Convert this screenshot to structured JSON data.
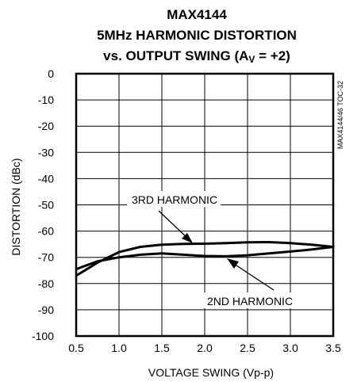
{
  "chart_data": {
    "type": "line",
    "title": [
      "MAX4144",
      "5MHz HARMONIC DISTORTION",
      "vs. OUTPUT SWING (AV = +2)"
    ],
    "side_note": "MAX4144/46 TOC-32",
    "xlabel": "VOLTAGE SWING (Vp-p)",
    "ylabel": "DISTORTION (dBc)",
    "xlim": [
      0.5,
      3.5
    ],
    "ylim": [
      -100,
      0
    ],
    "x_ticks": [
      "0.5",
      "1.0",
      "1.5",
      "2.0",
      "2.5",
      "3.0",
      "3.5"
    ],
    "y_ticks": [
      "0",
      "-10",
      "-20",
      "-30",
      "-40",
      "-50",
      "-60",
      "-70",
      "-80",
      "-90",
      "-100"
    ],
    "grid": true,
    "series": [
      {
        "name": "3RD HARMONIC",
        "x": [
          0.5,
          0.75,
          1.0,
          1.25,
          1.5,
          1.75,
          2.0,
          2.25,
          2.5,
          2.75,
          3.0,
          3.25,
          3.5
        ],
        "y": [
          -77,
          -72,
          -68,
          -66,
          -65.2,
          -64.9,
          -64.8,
          -64.6,
          -64.3,
          -64.2,
          -64.6,
          -65.2,
          -66
        ]
      },
      {
        "name": "2ND HARMONIC",
        "x": [
          0.5,
          0.75,
          1.0,
          1.25,
          1.5,
          1.75,
          2.0,
          2.25,
          2.5,
          2.75,
          3.0,
          3.25,
          3.5
        ],
        "y": [
          -74.5,
          -71.5,
          -70,
          -69,
          -68.5,
          -69,
          -69.5,
          -69.6,
          -69.2,
          -68.5,
          -67.8,
          -67,
          -66
        ]
      }
    ],
    "annotations": [
      "3RD HARMONIC",
      "2ND HARMONIC"
    ]
  }
}
